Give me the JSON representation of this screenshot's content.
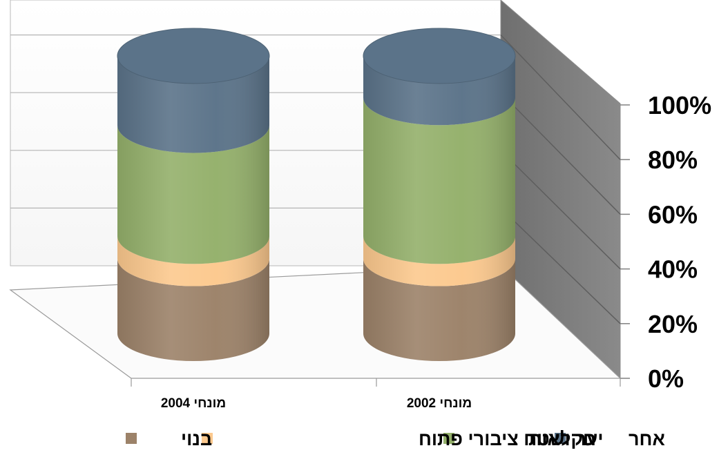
{
  "chart_data": {
    "type": "bar",
    "stacked": true,
    "normalized": true,
    "shape": "cylinder-3d",
    "categories": [
      "מונחי 2002",
      "מונחי 2004"
    ],
    "series": [
      {
        "name": "בנוי",
        "values": [
          27,
          27
        ],
        "color": "#9c8269"
      },
      {
        "name": "יער ושטח ציבורי פתוח",
        "values": [
          8,
          8
        ],
        "color": "#fcc98e"
      },
      {
        "name": "חקלאות",
        "values": [
          50,
          40
        ],
        "color": "#94b06b"
      },
      {
        "name": "אחר",
        "values": [
          15,
          25
        ],
        "color": "#5b7389"
      }
    ],
    "yticks": [
      "0%",
      "20%",
      "40%",
      "60%",
      "80%",
      "100%"
    ],
    "ylim": [
      0,
      100
    ],
    "legend_position": "bottom"
  }
}
